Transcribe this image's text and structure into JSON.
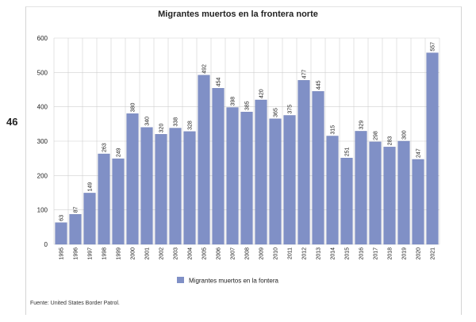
{
  "page": {
    "number": "46",
    "source": "Fuente: United States Border Patrol."
  },
  "colors": {
    "bar": "#8090c6",
    "bar_stroke": "#6f7fb5",
    "grid": "#d0d0d0",
    "text": "#222222"
  },
  "chart_data": {
    "type": "bar",
    "title": "Migrantes muertos en la frontera norte",
    "xlabel": "",
    "ylabel": "",
    "ylim": [
      0,
      600
    ],
    "yticks": [
      0,
      100,
      200,
      300,
      400,
      500,
      600
    ],
    "grid": true,
    "legend_position": "bottom-center",
    "categories": [
      "1995",
      "1996",
      "1997",
      "1998",
      "1999",
      "2000",
      "2001",
      "2002",
      "2003",
      "2004",
      "2005",
      "2006",
      "2007",
      "2008",
      "2009",
      "2010",
      "2011",
      "2012",
      "2013",
      "2014",
      "2015",
      "2016",
      "2017",
      "2018",
      "2019",
      "2020",
      "2021"
    ],
    "series": [
      {
        "name": "Migrantes muertos en la fontera",
        "values": [
          63,
          87,
          149,
          263,
          249,
          380,
          340,
          320,
          338,
          328,
          492,
          454,
          398,
          385,
          420,
          365,
          375,
          477,
          445,
          315,
          251,
          329,
          298,
          283,
          300,
          247,
          557
        ]
      }
    ]
  }
}
